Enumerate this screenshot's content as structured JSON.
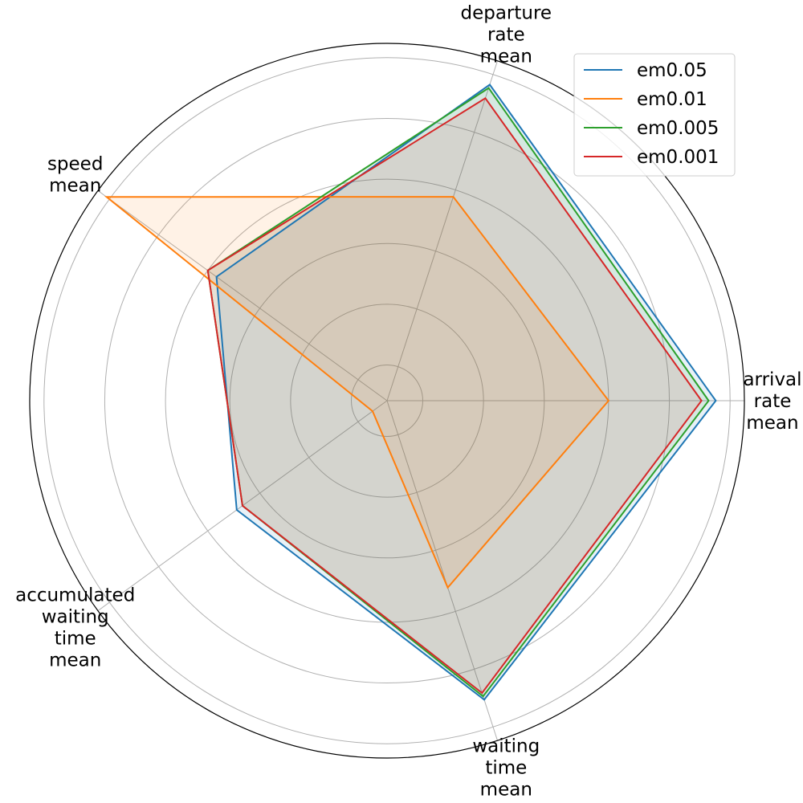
{
  "chart_data": {
    "type": "radar",
    "title": "",
    "axes": [
      [
        "arrival",
        "rate",
        "mean"
      ],
      [
        "departure",
        "rate",
        "mean"
      ],
      [
        "speed",
        "mean"
      ],
      [
        "accumulated",
        "waiting",
        "time",
        "mean"
      ],
      [
        "waiting",
        "time",
        "mean"
      ]
    ],
    "rlim": [
      0,
      1
    ],
    "grid": true,
    "legend_position": "top-right",
    "series": [
      {
        "name": "em0.05",
        "color": "#1f77b4",
        "values": [
          0.92,
          0.93,
          0.59,
          0.52,
          0.88
        ]
      },
      {
        "name": "em0.01",
        "color": "#ff7f0e",
        "values": [
          0.62,
          0.6,
          0.97,
          0.05,
          0.55
        ]
      },
      {
        "name": "em0.005",
        "color": "#2ca02c",
        "values": [
          0.9,
          0.92,
          0.62,
          0.5,
          0.87
        ]
      },
      {
        "name": "em0.001",
        "color": "#d62728",
        "values": [
          0.88,
          0.89,
          0.62,
          0.5,
          0.86
        ]
      }
    ]
  }
}
